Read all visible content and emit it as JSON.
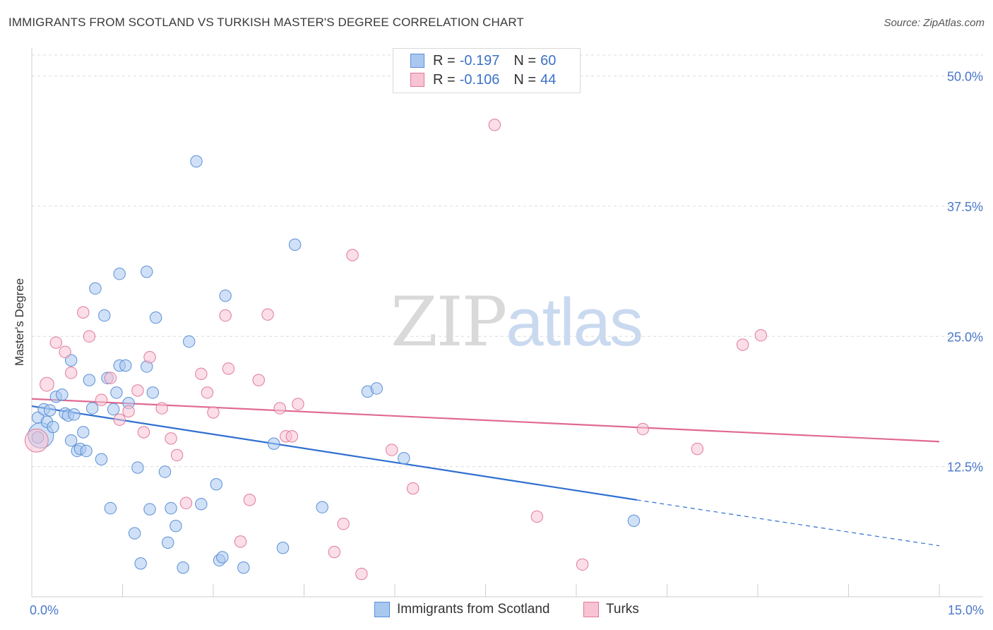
{
  "title": "IMMIGRANTS FROM SCOTLAND VS TURKISH MASTER'S DEGREE CORRELATION CHART",
  "source": "Source: ZipAtlas.com",
  "watermark": {
    "part1": "ZIP",
    "part2": "atlas"
  },
  "legend_top": [
    {
      "r_label": "R =",
      "r_value": "-0.197",
      "n_label": "N =",
      "n_value": "60",
      "color": "#a9c8f0",
      "border": "#5b8fd6"
    },
    {
      "r_label": "R =",
      "r_value": "-0.106",
      "n_label": "N =",
      "n_value": "44",
      "color": "#f8c3d3",
      "border": "#e07a9a"
    }
  ],
  "legend_bottom": [
    {
      "label": "Immigrants from Scotland",
      "color": "#a9c8f0",
      "border": "#5b8fd6"
    },
    {
      "label": "Turks",
      "color": "#f8c3d3",
      "border": "#e07a9a"
    }
  ],
  "chart_data": {
    "type": "scatter",
    "title": "IMMIGRANTS FROM SCOTLAND VS TURKISH MASTER'S DEGREE CORRELATION CHART",
    "xlabel": "",
    "ylabel": "Master's Degree",
    "xlim": [
      0,
      15
    ],
    "ylim": [
      0,
      52
    ],
    "x_tick_labels": [
      {
        "value": 0,
        "label": "0.0%"
      },
      {
        "value": 15,
        "label": "15.0%"
      }
    ],
    "x_minor_ticks": [
      1.5,
      3.0,
      4.5,
      6.0,
      7.5,
      9.0,
      10.5,
      12.0,
      13.5,
      15.0
    ],
    "y_ticks": [
      {
        "value": 12.5,
        "label": "12.5%"
      },
      {
        "value": 25.0,
        "label": "25.0%"
      },
      {
        "value": 37.5,
        "label": "37.5%"
      },
      {
        "value": 50.0,
        "label": "50.0%"
      }
    ],
    "grid": "horizontal dashed",
    "series": [
      {
        "name": "Immigrants from Scotland",
        "color": "#a9c8f0",
        "stroke": "#5b8fd6",
        "line_color": "#2f6fd0",
        "trend": {
          "x0": 0,
          "y0": 18.3,
          "x1": 10.0,
          "y1": 9.3,
          "dash_to_x": 15.0,
          "dash_to_y": 4.9
        },
        "points": [
          [
            0.1,
            17.2,
            10
          ],
          [
            0.15,
            15.5,
            22
          ],
          [
            0.2,
            18.0,
            10
          ],
          [
            0.25,
            16.8,
            10
          ],
          [
            0.3,
            17.9,
            10
          ],
          [
            0.35,
            16.3,
            10
          ],
          [
            0.4,
            19.2,
            10
          ],
          [
            0.5,
            19.4,
            10
          ],
          [
            0.55,
            17.6,
            10
          ],
          [
            0.6,
            17.4,
            10
          ],
          [
            0.65,
            15.0,
            10
          ],
          [
            0.65,
            22.7,
            10
          ],
          [
            0.7,
            17.5,
            10
          ],
          [
            0.75,
            14.0,
            10
          ],
          [
            0.8,
            14.2,
            10
          ],
          [
            0.85,
            15.8,
            10
          ],
          [
            0.9,
            14.0,
            10
          ],
          [
            0.95,
            20.8,
            10
          ],
          [
            1.0,
            18.1,
            10
          ],
          [
            1.05,
            29.6,
            10
          ],
          [
            1.15,
            13.2,
            10
          ],
          [
            1.2,
            27.0,
            10
          ],
          [
            1.25,
            21.0,
            10
          ],
          [
            1.3,
            8.5,
            10
          ],
          [
            1.35,
            18.0,
            10
          ],
          [
            1.4,
            19.6,
            10
          ],
          [
            1.45,
            31.0,
            10
          ],
          [
            1.45,
            22.2,
            10
          ],
          [
            1.55,
            22.2,
            10
          ],
          [
            1.6,
            18.6,
            10
          ],
          [
            1.7,
            6.1,
            10
          ],
          [
            1.75,
            12.4,
            10
          ],
          [
            1.8,
            3.2,
            10
          ],
          [
            1.9,
            31.2,
            10
          ],
          [
            1.9,
            22.1,
            10
          ],
          [
            1.95,
            8.4,
            10
          ],
          [
            2.0,
            19.6,
            10
          ],
          [
            2.05,
            26.8,
            10
          ],
          [
            2.2,
            12.0,
            10
          ],
          [
            2.25,
            5.2,
            10
          ],
          [
            2.3,
            8.5,
            10
          ],
          [
            2.38,
            6.8,
            10
          ],
          [
            2.5,
            2.8,
            10
          ],
          [
            2.6,
            24.5,
            10
          ],
          [
            2.72,
            41.8,
            10
          ],
          [
            2.8,
            8.9,
            10
          ],
          [
            3.05,
            10.8,
            10
          ],
          [
            3.1,
            3.5,
            10
          ],
          [
            3.15,
            3.8,
            10
          ],
          [
            3.2,
            28.9,
            10
          ],
          [
            3.5,
            2.8,
            10
          ],
          [
            4.0,
            14.7,
            10
          ],
          [
            4.15,
            4.7,
            10
          ],
          [
            4.35,
            33.8,
            10
          ],
          [
            4.8,
            8.6,
            10
          ],
          [
            5.55,
            19.7,
            10
          ],
          [
            5.7,
            20.0,
            10
          ],
          [
            6.15,
            13.3,
            10
          ],
          [
            9.95,
            7.3,
            10
          ],
          [
            0.1,
            15.3,
            10
          ]
        ]
      },
      {
        "name": "Turks",
        "color": "#f8c3d3",
        "stroke": "#e07a9a",
        "line_color": "#e06a90",
        "trend": {
          "x0": 0,
          "y0": 19.0,
          "x1": 15.0,
          "y1": 14.9
        },
        "points": [
          [
            0.08,
            15.0,
            20
          ],
          [
            0.25,
            20.4,
            12
          ],
          [
            0.4,
            24.4,
            10
          ],
          [
            0.55,
            23.5,
            10
          ],
          [
            0.65,
            21.5,
            10
          ],
          [
            0.85,
            27.3,
            10
          ],
          [
            0.95,
            25.0,
            10
          ],
          [
            1.15,
            18.9,
            10
          ],
          [
            1.3,
            21.0,
            10
          ],
          [
            1.45,
            17.0,
            10
          ],
          [
            1.6,
            17.8,
            10
          ],
          [
            1.75,
            19.8,
            10
          ],
          [
            1.85,
            15.8,
            10
          ],
          [
            1.95,
            23.0,
            10
          ],
          [
            2.15,
            18.1,
            10
          ],
          [
            2.3,
            15.2,
            10
          ],
          [
            2.4,
            13.6,
            10
          ],
          [
            2.55,
            9.0,
            10
          ],
          [
            2.8,
            21.4,
            10
          ],
          [
            2.9,
            19.6,
            10
          ],
          [
            3.0,
            17.7,
            10
          ],
          [
            3.2,
            27.0,
            10
          ],
          [
            3.25,
            21.9,
            10
          ],
          [
            3.45,
            5.3,
            10
          ],
          [
            3.6,
            9.3,
            10
          ],
          [
            3.75,
            20.8,
            10
          ],
          [
            3.9,
            27.1,
            10
          ],
          [
            4.1,
            18.1,
            10
          ],
          [
            4.2,
            15.4,
            10
          ],
          [
            4.3,
            15.4,
            10
          ],
          [
            4.4,
            18.5,
            10
          ],
          [
            5.0,
            4.3,
            10
          ],
          [
            5.15,
            7.0,
            10
          ],
          [
            5.3,
            32.8,
            10
          ],
          [
            5.45,
            2.2,
            10
          ],
          [
            5.95,
            14.1,
            10
          ],
          [
            6.3,
            10.4,
            10
          ],
          [
            7.65,
            45.3,
            10
          ],
          [
            8.35,
            7.7,
            10
          ],
          [
            9.1,
            3.1,
            10
          ],
          [
            10.1,
            16.1,
            10
          ],
          [
            11.0,
            14.2,
            10
          ],
          [
            11.75,
            24.2,
            10
          ],
          [
            12.05,
            25.1,
            10
          ]
        ]
      }
    ]
  }
}
